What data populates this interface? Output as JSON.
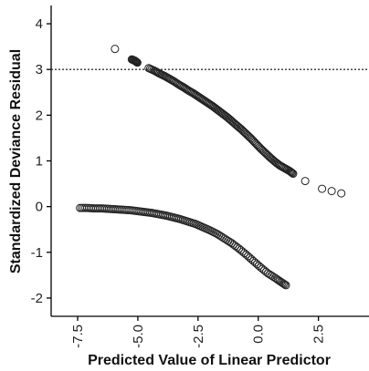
{
  "chart_data": {
    "type": "scatter",
    "title": "",
    "xlabel": "Predicted Value of Linear Predictor",
    "ylabel": "Standardized Deviance Residual",
    "xlim": [
      -8.6,
      4.6
    ],
    "ylim": [
      -2.4,
      4.4
    ],
    "x_ticks": [
      -7.5,
      -5.0,
      -2.5,
      0.0,
      2.5
    ],
    "x_tick_labels": [
      "-7.5",
      "-5.0",
      "-2.5",
      "0.0",
      "2.5"
    ],
    "y_ticks": [
      -2,
      -1,
      0,
      1,
      2,
      3,
      4
    ],
    "y_tick_labels": [
      "-2",
      "-1",
      "0",
      "1",
      "2",
      "3",
      "4"
    ],
    "reference_line": {
      "y": 3,
      "style": "dotted"
    },
    "grid": false,
    "legend": "none",
    "marker": "open-circle",
    "colors": {
      "marker": "#222222",
      "axis": "#000000",
      "reference_line": "#333333"
    },
    "series": [
      {
        "points": [
          [
            -5.95,
            3.45
          ],
          [
            -5.25,
            3.22
          ],
          [
            -5.12,
            3.19
          ],
          [
            -5.02,
            3.15
          ],
          [
            -4.55,
            3.03
          ],
          [
            -4.3,
            2.97
          ],
          [
            -4.1,
            2.91
          ],
          [
            -3.9,
            2.86
          ],
          [
            -3.7,
            2.8
          ],
          [
            -3.5,
            2.74
          ],
          [
            -3.3,
            2.67
          ],
          [
            -3.1,
            2.61
          ],
          [
            -2.9,
            2.54
          ],
          [
            -2.7,
            2.48
          ],
          [
            -2.5,
            2.41
          ],
          [
            -2.3,
            2.34
          ],
          [
            -2.1,
            2.27
          ],
          [
            -1.9,
            2.2
          ],
          [
            -1.7,
            2.12
          ],
          [
            -1.5,
            2.04
          ],
          [
            -1.3,
            1.96
          ],
          [
            -1.1,
            1.87
          ],
          [
            -0.9,
            1.78
          ],
          [
            -0.7,
            1.69
          ],
          [
            -0.5,
            1.59
          ],
          [
            -0.3,
            1.49
          ],
          [
            -0.1,
            1.38
          ],
          [
            0.1,
            1.27
          ],
          [
            0.3,
            1.17
          ],
          [
            0.5,
            1.07
          ],
          [
            0.7,
            0.98
          ],
          [
            0.9,
            0.9
          ],
          [
            1.1,
            0.84
          ],
          [
            1.3,
            0.78
          ],
          [
            1.45,
            0.72
          ],
          [
            1.95,
            0.56
          ],
          [
            2.65,
            0.39
          ],
          [
            3.05,
            0.34
          ],
          [
            3.45,
            0.29
          ]
        ]
      },
      {
        "points": [
          [
            -7.4,
            -0.03
          ],
          [
            -7.1,
            -0.03
          ],
          [
            -6.8,
            -0.04
          ],
          [
            -6.5,
            -0.04
          ],
          [
            -6.2,
            -0.05
          ],
          [
            -5.9,
            -0.06
          ],
          [
            -5.6,
            -0.07
          ],
          [
            -5.3,
            -0.08
          ],
          [
            -5.0,
            -0.1
          ],
          [
            -4.7,
            -0.12
          ],
          [
            -4.4,
            -0.14
          ],
          [
            -4.1,
            -0.17
          ],
          [
            -3.8,
            -0.2
          ],
          [
            -3.5,
            -0.24
          ],
          [
            -3.2,
            -0.28
          ],
          [
            -2.9,
            -0.33
          ],
          [
            -2.6,
            -0.38
          ],
          [
            -2.3,
            -0.45
          ],
          [
            -2.0,
            -0.52
          ],
          [
            -1.7,
            -0.6
          ],
          [
            -1.4,
            -0.7
          ],
          [
            -1.1,
            -0.8
          ],
          [
            -0.8,
            -0.92
          ],
          [
            -0.5,
            -1.05
          ],
          [
            -0.2,
            -1.19
          ],
          [
            0.1,
            -1.33
          ],
          [
            0.4,
            -1.46
          ],
          [
            0.7,
            -1.56
          ],
          [
            0.95,
            -1.65
          ],
          [
            1.15,
            -1.72
          ]
        ]
      }
    ]
  }
}
